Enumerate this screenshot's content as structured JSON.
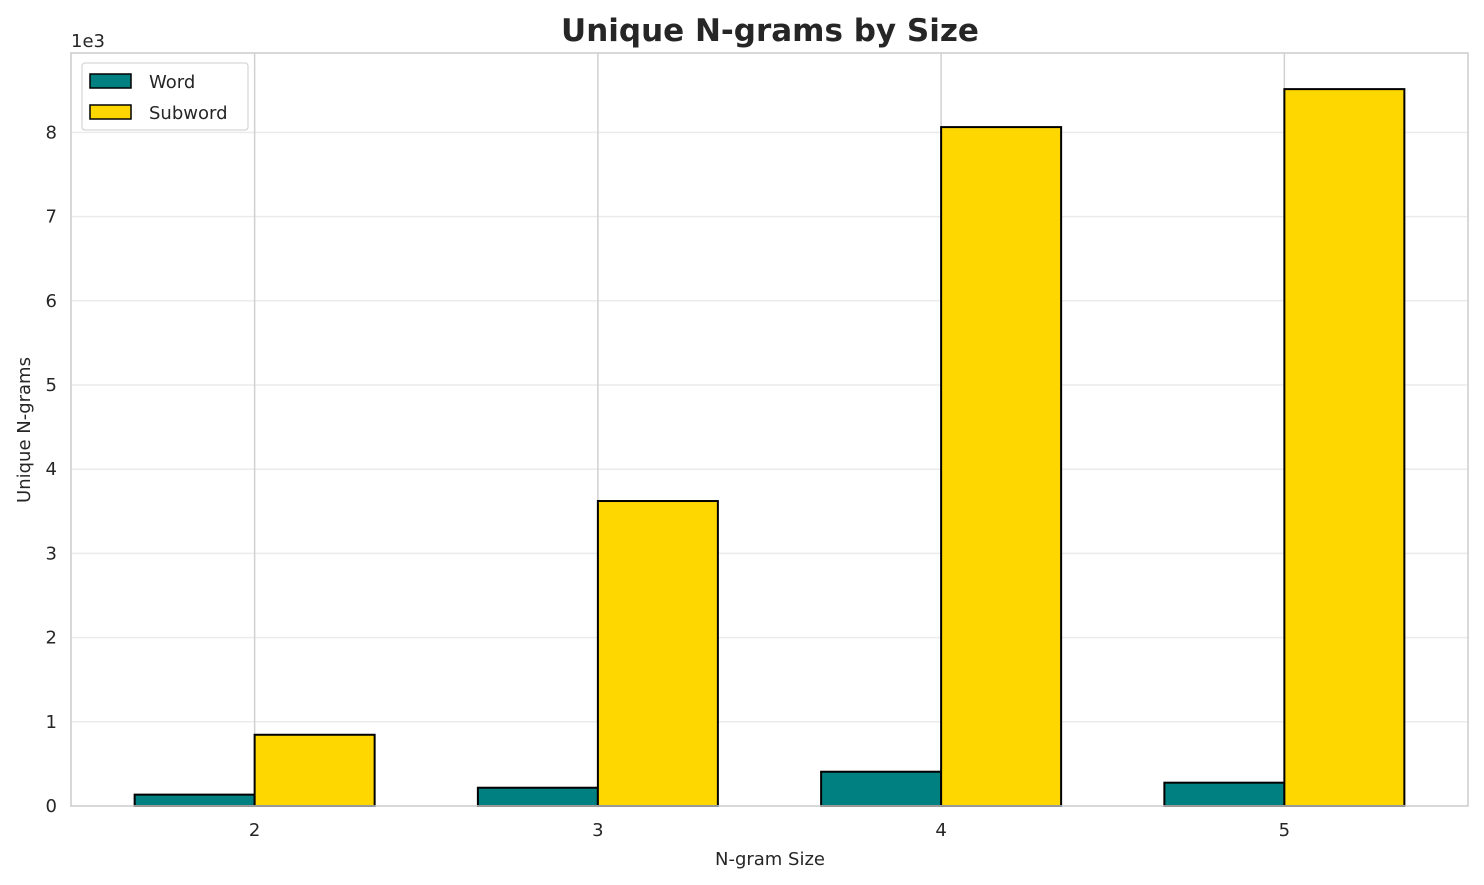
{
  "chart_data": {
    "type": "bar",
    "title": "Unique N-grams by Size",
    "xlabel": "N-gram Size",
    "ylabel": "Unique N-grams",
    "y_offset_label": "1e3",
    "categories": [
      "2",
      "3",
      "4",
      "5"
    ],
    "series": [
      {
        "name": "Word",
        "color": "#008080",
        "values": [
          135,
          217,
          407,
          277
        ]
      },
      {
        "name": "Subword",
        "color": "#FFD700",
        "values": [
          846,
          3622,
          8063,
          8514
        ]
      }
    ],
    "yticks": [
      0,
      1000,
      2000,
      3000,
      4000,
      5000,
      6000,
      7000,
      8000
    ],
    "ytick_labels": [
      "0",
      "1",
      "2",
      "3",
      "4",
      "5",
      "6",
      "7",
      "8"
    ],
    "ylim": [
      0,
      8943
    ],
    "grid": true,
    "legend": "top-left"
  }
}
